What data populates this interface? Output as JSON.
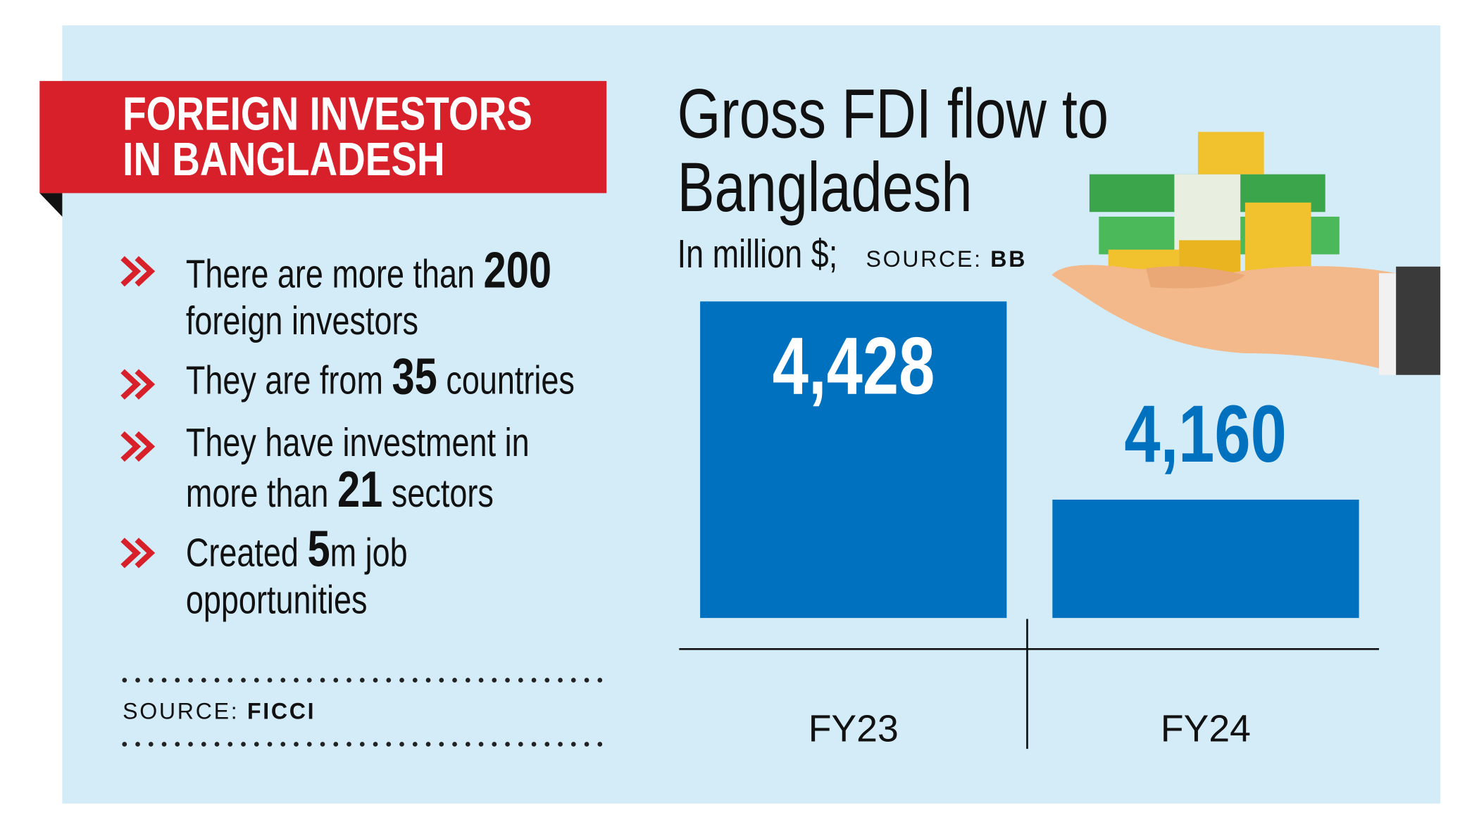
{
  "panel": {
    "banner": "FOREIGN INVESTORS\nIN BANGLADESH",
    "bullets": [
      [
        {
          "text": "There are more than "
        },
        {
          "text": "200",
          "bold": true
        },
        {
          "text": "\nforeign investors"
        }
      ],
      [
        {
          "text": "They are from "
        },
        {
          "text": "35",
          "bold": true
        },
        {
          "text": " countries"
        }
      ],
      [
        {
          "text": "They have investment in\nmore than "
        },
        {
          "text": "21",
          "bold": true
        },
        {
          "text": " sectors"
        }
      ],
      [
        {
          "text": "Created "
        },
        {
          "text": "5",
          "bold": true
        },
        {
          "text": "m job\nopportunities"
        }
      ]
    ],
    "source_label": "SOURCE:",
    "source": "FICCI"
  },
  "chart_data": {
    "type": "bar",
    "title": "Gross FDI flow to\nBangladesh",
    "subtitle": "In million $;",
    "source_label": "SOURCE:",
    "source": "BB",
    "categories": [
      "FY23",
      "FY24"
    ],
    "values": [
      4428,
      4160
    ],
    "value_labels": [
      "4,428",
      "4,160"
    ],
    "color": "#0071bf",
    "ylim": [
      4000,
      4428
    ]
  }
}
